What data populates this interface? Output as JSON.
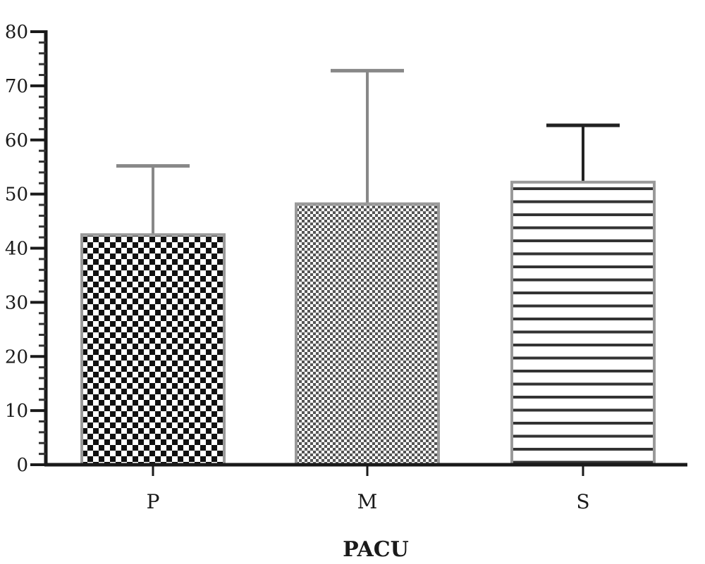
{
  "chart_data": {
    "type": "bar",
    "categories": [
      "P",
      "M",
      "S"
    ],
    "values": [
      42.5,
      48.2,
      52.2
    ],
    "error_upper": [
      55.2,
      72.8,
      62.7
    ],
    "xlabel": "PACU",
    "ylabel": "",
    "ylim": [
      0,
      80
    ],
    "yticks": [
      "0",
      "10",
      "20",
      "30",
      "40",
      "50",
      "60",
      "70",
      "80"
    ],
    "grid": false,
    "patterns": [
      "checker-large",
      "checker-fine",
      "horizontal-stripes"
    ],
    "colors": {
      "axis": "#1a1a1a",
      "dark": "#111111",
      "mid": "#777777",
      "light": "#ffffff"
    }
  }
}
